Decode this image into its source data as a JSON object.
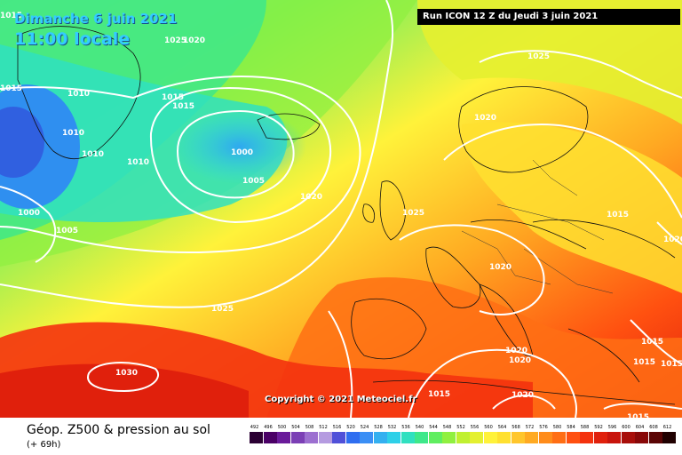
{
  "header": {
    "date": "Dimanche 6 juin 2021",
    "time": "11:00 locale",
    "run": "Run ICON 12 Z du Jeudi 3 juin 2021"
  },
  "footer": {
    "title": "Géop. Z500 & pression au sol",
    "subtitle": "(+ 69h)",
    "copyright": "Copyright © 2021 Meteociel.fr"
  },
  "isobar_labels": [
    "1020",
    "1015",
    "1010",
    "1015",
    "1010",
    "1010",
    "1010",
    "1000",
    "1005",
    "1000",
    "1005",
    "1025",
    "1020",
    "1025",
    "1015",
    "1015",
    "1020",
    "1025",
    "1030",
    "1015",
    "1020",
    "1020",
    "1015",
    "1020",
    "1015",
    "1015",
    "1020",
    "1015",
    "1015",
    "1025",
    "1020"
  ],
  "color_scale": {
    "values": [
      492,
      496,
      500,
      504,
      508,
      512,
      516,
      520,
      524,
      528,
      532,
      536,
      540,
      544,
      548,
      552,
      556,
      560,
      564,
      568,
      572,
      576,
      580,
      584,
      588,
      592,
      596,
      600,
      604,
      608,
      612
    ],
    "colors": [
      "#2b0033",
      "#4a0066",
      "#6a1b9a",
      "#7b3fb5",
      "#9c6fd0",
      "#b59be0",
      "#5050d8",
      "#2f6ef0",
      "#3b8ff5",
      "#34b0f0",
      "#2ed0e8",
      "#30e0c0",
      "#3ee88a",
      "#60ee60",
      "#90f040",
      "#c0f030",
      "#e4f030",
      "#fff23a",
      "#ffe030",
      "#ffc62c",
      "#ffaa22",
      "#ff8c1a",
      "#ff6e14",
      "#ff5010",
      "#f4320e",
      "#e0200c",
      "#c8140c",
      "#a80e0a",
      "#880808",
      "#5a0404",
      "#200000"
    ]
  }
}
